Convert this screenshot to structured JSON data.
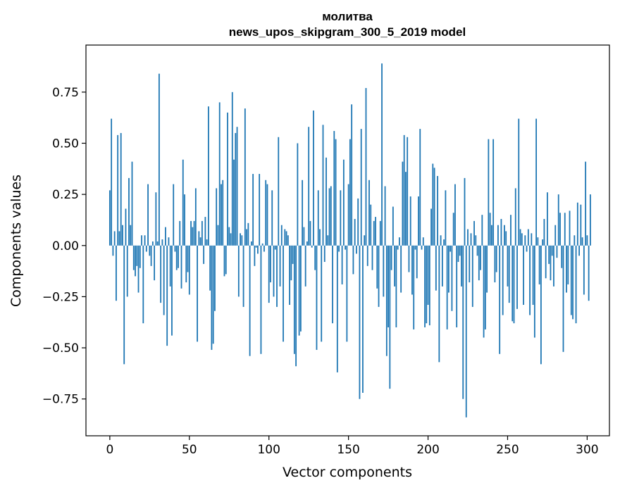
{
  "chart_data": {
    "type": "bar",
    "title": "молитва",
    "subtitle": "news_upos_skipgram_300_5_2019 model",
    "xlabel": "Vector components",
    "ylabel": "Components values",
    "xlim": [
      -15,
      314
    ],
    "ylim": [
      -0.93,
      0.98
    ],
    "x_ticks": [
      0,
      50,
      100,
      150,
      200,
      250,
      300
    ],
    "y_ticks": [
      -0.75,
      -0.5,
      -0.25,
      0.0,
      0.25,
      0.5,
      0.75
    ],
    "x_tick_labels": [
      "0",
      "50",
      "100",
      "150",
      "200",
      "250",
      "300"
    ],
    "y_tick_labels": [
      "−0.75",
      "−0.50",
      "−0.25",
      "0.00",
      "0.25",
      "0.50",
      "0.75"
    ],
    "grid": false,
    "bar_color": "#1f77b4",
    "values": [
      0.27,
      0.62,
      -0.05,
      0.07,
      -0.27,
      0.54,
      0.07,
      0.55,
      0.1,
      -0.58,
      0.18,
      -0.25,
      0.33,
      0.1,
      0.41,
      -0.12,
      -0.15,
      -0.1,
      -0.23,
      -0.11,
      0.05,
      -0.38,
      0.05,
      -0.03,
      0.3,
      -0.05,
      -0.1,
      0.02,
      -0.17,
      0.26,
      0.02,
      0.84,
      -0.28,
      0.03,
      -0.34,
      0.09,
      -0.49,
      0.04,
      -0.2,
      -0.44,
      0.3,
      -0.03,
      -0.12,
      -0.11,
      0.12,
      -0.21,
      0.42,
      0.25,
      -0.18,
      -0.13,
      -0.24,
      0.12,
      0.09,
      0.12,
      0.28,
      -0.47,
      0.07,
      0.04,
      0.12,
      -0.09,
      0.14,
      0.03,
      0.68,
      -0.22,
      -0.51,
      -0.48,
      -0.32,
      0.28,
      0.1,
      0.7,
      0.3,
      0.32,
      -0.15,
      -0.14,
      0.65,
      0.09,
      0.06,
      0.75,
      0.42,
      0.55,
      0.58,
      -0.25,
      0.06,
      0.05,
      -0.3,
      0.67,
      0.08,
      0.11,
      -0.54,
      0.02,
      0.35,
      -0.1,
      -0.01,
      -0.04,
      0.35,
      -0.53,
      0.01,
      -0.03,
      0.32,
      0.3,
      -0.28,
      -0.18,
      0.27,
      -0.25,
      -0.02,
      -0.3,
      0.53,
      -0.2,
      0.1,
      -0.47,
      0.08,
      0.07,
      0.05,
      -0.29,
      -0.17,
      -0.09,
      -0.53,
      -0.59,
      0.5,
      -0.44,
      -0.42,
      0.32,
      0.09,
      -0.2,
      0.02,
      0.58,
      0.12,
      -0.01,
      0.66,
      -0.12,
      -0.51,
      0.27,
      0.08,
      -0.47,
      0.59,
      -0.08,
      0.43,
      0.05,
      0.28,
      0.29,
      -0.38,
      0.56,
      0.52,
      -0.62,
      -0.03,
      0.27,
      -0.19,
      0.42,
      -0.02,
      -0.47,
      0.3,
      0.52,
      0.69,
      -0.14,
      0.13,
      -0.04,
      0.23,
      -0.75,
      0.57,
      -0.72,
      0.05,
      0.77,
      -0.1,
      0.32,
      0.2,
      -0.12,
      0.12,
      0.14,
      -0.21,
      -0.3,
      0.12,
      0.89,
      -0.25,
      0.29,
      -0.54,
      -0.4,
      -0.7,
      -0.12,
      0.19,
      -0.2,
      -0.4,
      -0.02,
      0.04,
      -0.23,
      0.41,
      0.54,
      0.36,
      0.53,
      -0.13,
      0.24,
      -0.24,
      -0.41,
      -0.02,
      -0.16,
      0.24,
      0.57,
      -0.02,
      0.04,
      -0.4,
      -0.38,
      -0.29,
      -0.39,
      0.18,
      0.4,
      0.38,
      -0.22,
      0.34,
      -0.57,
      0.05,
      -0.2,
      0.03,
      0.27,
      -0.41,
      -0.23,
      -0.03,
      -0.32,
      0.16,
      0.3,
      -0.4,
      -0.08,
      -0.05,
      -0.2,
      -0.75,
      0.33,
      -0.84,
      0.08,
      -0.18,
      0.06,
      -0.3,
      0.12,
      0.05,
      -0.05,
      -0.17,
      -0.12,
      0.15,
      -0.45,
      -0.41,
      -0.23,
      0.52,
      0.16,
      0.1,
      0.52,
      -0.18,
      -0.13,
      0.1,
      -0.53,
      0.13,
      -0.34,
      0.1,
      0.07,
      -0.2,
      -0.28,
      0.15,
      -0.37,
      -0.38,
      0.28,
      -0.31,
      0.62,
      0.08,
      0.06,
      -0.29,
      0.05,
      -0.03,
      0.08,
      -0.34,
      0.06,
      -0.29,
      -0.45,
      0.62,
      0.04,
      -0.19,
      -0.58,
      0.03,
      0.13,
      -0.16,
      0.26,
      -0.09,
      -0.17,
      -0.05,
      -0.2,
      0.1,
      -0.06,
      0.25,
      0.16,
      -0.11,
      -0.52,
      0.16,
      -0.23,
      -0.19,
      0.17,
      -0.34,
      -0.36,
      0.05,
      -0.38,
      0.21,
      -0.05,
      0.2,
      0.04,
      -0.24,
      0.41,
      0.05,
      -0.27,
      0.25
    ]
  }
}
